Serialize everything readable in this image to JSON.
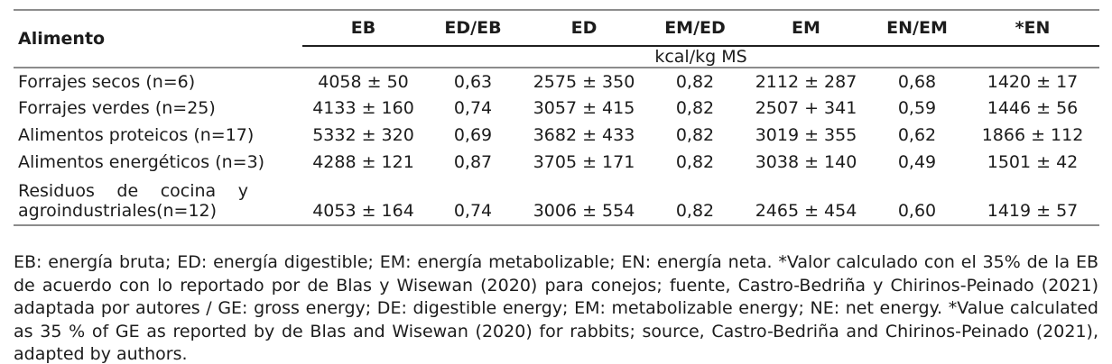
{
  "table": {
    "food_header": "Alimento",
    "unit": "kcal/kg MS",
    "headers": [
      "EB",
      "ED/EB",
      "ED",
      "EM/ED",
      "EM",
      "EN/EM",
      "*EN"
    ],
    "rows": [
      {
        "name": "Forrajes secos (n=6)",
        "cells": [
          "4058 ± 50",
          "0,63",
          "2575 ± 350",
          "0,82",
          "2112 ± 287",
          "0,68",
          "1420 ± 17"
        ]
      },
      {
        "name": "Forrajes verdes (n=25)",
        "cells": [
          "4133 ± 160",
          "0,74",
          "3057 ± 415",
          "0,82",
          "2507 + 341",
          "0,59",
          "1446 ± 56"
        ]
      },
      {
        "name": "Alimentos proteicos (n=17)",
        "cells": [
          "5332 ± 320",
          "0,69",
          "3682 ± 433",
          "0,82",
          "3019 ± 355",
          "0,62",
          "1866 ± 112"
        ]
      },
      {
        "name": "Alimentos energéticos (n=3)",
        "cells": [
          "4288 ± 121",
          "0,87",
          "3705 ± 171",
          "0,82",
          "3038 ± 140",
          "0,49",
          "1501 ± 42"
        ]
      },
      {
        "name_line1": "Residuos de cocina y",
        "name_line2": "agroindustriales(n=12)",
        "cells": [
          "4053 ± 164",
          "0,74",
          "3006 ± 554",
          "0,82",
          "2465 ± 454",
          "0,60",
          "1419 ± 57"
        ]
      }
    ]
  },
  "footnote": "EB: energía bruta; ED: energía digestible; EM: energía metabolizable; EN: energía neta. *Valor calculado con el 35% de la EB de acuerdo con lo reportado por de Blas y Wisewan (2020) para conejos; fuente, Castro-Bedriña y Chirinos-Peinado (2021) adaptada por autores / GE: gross energy; DE: digestible energy; EM: metabolizable energy; NE: net energy. *Value calculated as 35 % of GE as reported by de Blas and Wisewan (2020) for rabbits; source, Castro-Bedriña and Chirinos-Peinado (2021), adapted by authors."
}
